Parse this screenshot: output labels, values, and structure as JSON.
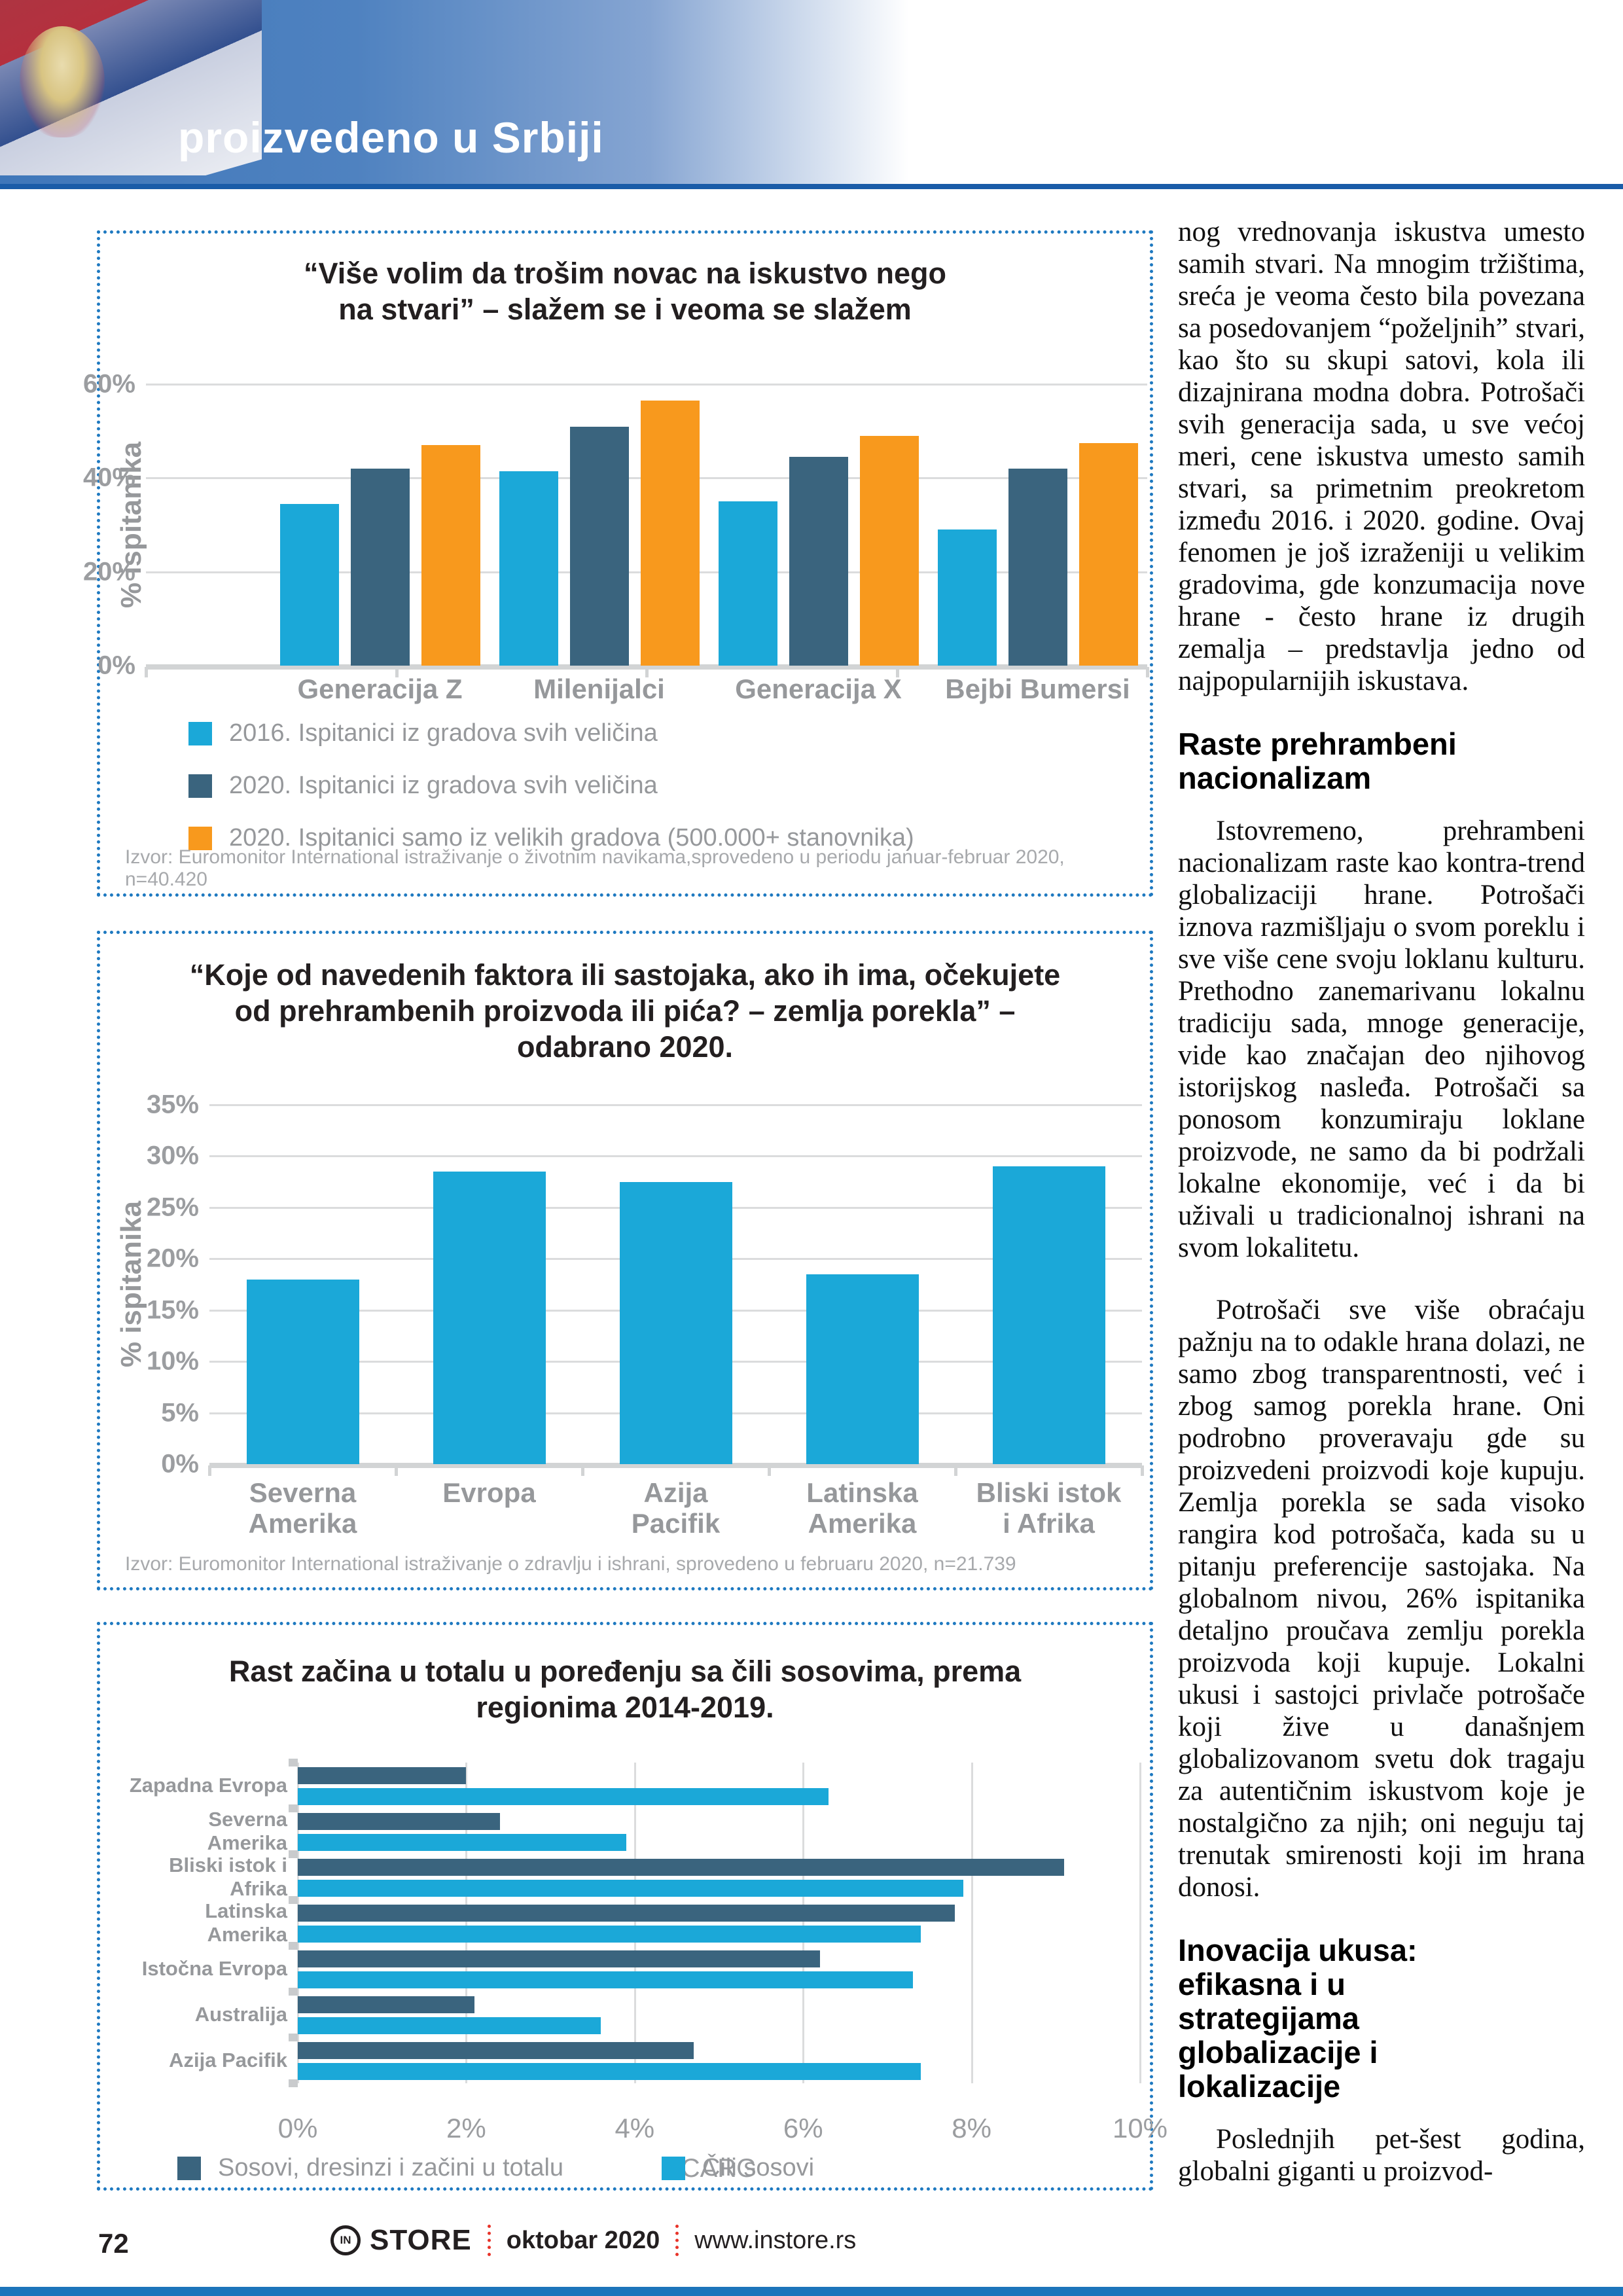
{
  "header": {
    "title": "proizvedeno u Srbiji"
  },
  "colors": {
    "accent_blue": "#1E79C0",
    "light_blue": "#1BA8D8",
    "dark_slate": "#3A647E",
    "orange": "#F8991D",
    "gray_label": "#96989B",
    "red_dots": "#E8342A"
  },
  "chart_data": [
    {
      "type": "bar",
      "title": "“Više volim da trošim novac na iskustvo nego\nna stvari” – slažem se i veoma se slažem",
      "categories": [
        "Generacija Z",
        "Milenijalci",
        "Generacija X",
        "Bejbi Bumersi"
      ],
      "series": [
        {
          "name": "2016. Ispitanici iz gradova svih veličina",
          "color": "#1BA8D8",
          "values": [
            34.5,
            41.5,
            35,
            29
          ]
        },
        {
          "name": "2020. Ispitanici  iz gradova svih veličina",
          "color": "#3A647E",
          "values": [
            42,
            51,
            44.5,
            42
          ]
        },
        {
          "name": "2020. Ispitanici samo iz velikih gradova (500.000+ stanovnika)",
          "color": "#F8991D",
          "values": [
            47,
            56.5,
            49,
            47.5
          ]
        }
      ],
      "ylabel": "% ispitanika",
      "yticks": [
        "0%",
        "20%",
        "40%",
        "60%"
      ],
      "ylim": [
        0,
        60
      ],
      "grid": true,
      "legend_position": "bottom-left",
      "source": "Izvor: Euromonitor International istraživanje o životnim navikama,sprovedeno u periodu januar-februar 2020, n=40.420"
    },
    {
      "type": "bar",
      "title": "“Koje od navedenih faktora ili sastojaka, ako ih ima, očekujete\nod prehrambenih proizvoda ili pića? – zemlja porekla” –\nodabrano 2020.",
      "categories": [
        "Severna\nAmerika",
        "Evropa",
        "Azija\nPacifik",
        "Latinska\nAmerika",
        "Bliski istok\ni Afrika"
      ],
      "values": [
        18,
        28.5,
        27.5,
        18.5,
        29
      ],
      "color": "#1BA8D8",
      "ylabel": "% ispitanika",
      "yticks": [
        "0%",
        "5%",
        "10%",
        "15%",
        "20%",
        "25%",
        "30%",
        "35%"
      ],
      "ylim": [
        0,
        35
      ],
      "grid": true,
      "source": "Izvor: Euromonitor International istraživanje o zdravlju i ishrani, sprovedeno u februaru 2020, n=21.739"
    },
    {
      "type": "bar-horizontal",
      "title": "Rast začina u totalu u poređenju sa čili sosovima, prema\nregionima 2014-2019.",
      "categories": [
        "Zapadna Evropa",
        "Severna Amerika",
        "Bliski istok i Afrika",
        "Latinska Amerika",
        "Istočna Evropa",
        "Australija",
        "Azija Pacifik"
      ],
      "series": [
        {
          "name": "Sosovi, dresinzi i začini u totalu",
          "color": "#3A647E",
          "values": [
            2.0,
            2.4,
            9.1,
            7.8,
            6.2,
            2.1,
            4.7
          ]
        },
        {
          "name": "Čili sosovi",
          "color": "#1BA8D8",
          "values": [
            6.3,
            3.9,
            7.9,
            7.4,
            7.3,
            3.6,
            7.4
          ]
        }
      ],
      "xlabel": "CARG",
      "xticks": [
        "0%",
        "2%",
        "4%",
        "6%",
        "8%",
        "10%"
      ],
      "xlim": [
        0,
        10
      ],
      "grid": true,
      "legend_position": "bottom"
    }
  ],
  "article": {
    "blocks": [
      {
        "kind": "p",
        "indent": false,
        "text": "nog vrednovanja iskustva umesto samih stvari. Na mnogim tržištima, sreća je veoma često bila povezana sa posedovanjem “poželjnih” stvari, kao što su skupi satovi, kola ili dizajnirana modna dobra. Potrošači svih generacija sada, u sve većoj meri, cene iskustva umesto samih stvari, sa primetnim preokretom između 2016. i 2020. godine. Ovaj fenomen je još izraženiji u velikim gradovima, gde konzumacija nove hrane - često hrane iz drugih zemalja – predstavlja jedno od najpopularnijih iskustava."
      },
      {
        "kind": "h",
        "text": "Raste prehrambeni\nnacionalizam"
      },
      {
        "kind": "p",
        "indent": true,
        "text": "Istovremeno, prehrambeni nacionalizam raste kao kontra-trend globalizaciji hrane. Potrošači iznova razmišljaju o svom poreklu i sve više cene svoju loklanu kulturu. Prethodno zanemarivanu lokalnu tradiciju sada, mnoge generacije, vide kao značajan deo njihovog istorijskog nasleđa. Potrošači sa ponosom konzumiraju loklane proizvode, ne samo da bi podržali lokalne ekonomije, već i da bi uživali u tradicionalnoj ishrani na svom lokalitetu."
      },
      {
        "kind": "p",
        "indent": true,
        "text": "Potrošači sve više obraćaju pažnju na to odakle hrana dolazi, ne samo zbog transparentnosti, već i zbog samog porekla hrane. Oni podrobno proveravaju gde su proizvedeni proizvodi koje kupuju. Zemlja porekla se sada visoko rangira kod potrošača, kada su u pitanju preferencije sastojaka. Na globalnom nivou, 26% ispitanika detaljno proučava zemlju porekla proizvoda koji kupuje. Lokalni ukusi i sastojci privlače potrošače koji žive u današnjem globalizovanom svetu dok tragaju za autentičnim iskustvom koje je nostalgično za njih; oni neguju taj trenutak smirenosti koji im hrana donosi."
      },
      {
        "kind": "h",
        "text": "Inovacija ukusa:\nefikasna i u\nstrategijama\nglobalizacije i\nlokalizacije"
      },
      {
        "kind": "p",
        "indent": true,
        "text": "Poslednjih pet-šest godina, globalni giganti u proizvod-"
      }
    ]
  },
  "footer": {
    "page_number": "72",
    "brand_icon_text": "IN",
    "brand": "STORE",
    "issue": "oktobar 2020",
    "website": "www.instore.rs"
  }
}
